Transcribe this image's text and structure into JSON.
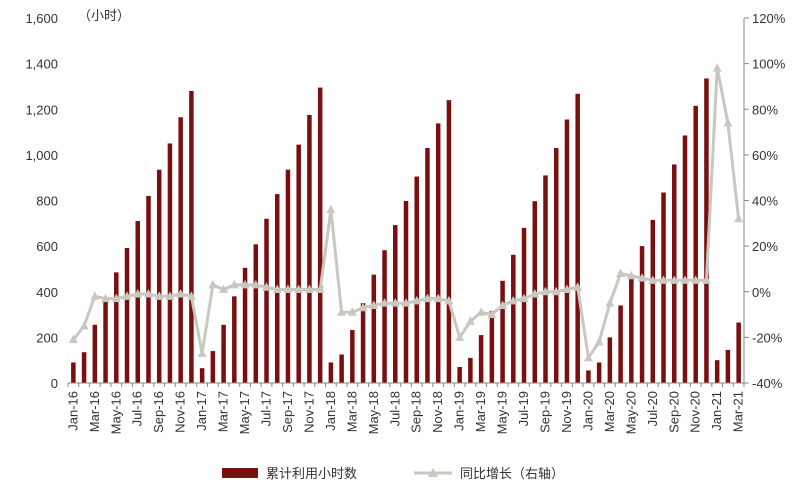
{
  "chart_data": {
    "type": "bar",
    "unit_label": "（小时）",
    "categories": [
      "Jan-16",
      "Feb-16",
      "Mar-16",
      "Apr-16",
      "May-16",
      "Jun-16",
      "Jul-16",
      "Aug-16",
      "Sep-16",
      "Oct-16",
      "Nov-16",
      "Dec-16",
      "Jan-17",
      "Feb-17",
      "Mar-17",
      "Apr-17",
      "May-17",
      "Jun-17",
      "Jul-17",
      "Aug-17",
      "Sep-17",
      "Oct-17",
      "Nov-17",
      "Dec-17",
      "Jan-18",
      "Feb-18",
      "Mar-18",
      "Apr-18",
      "May-18",
      "Jun-18",
      "Jul-18",
      "Aug-18",
      "Sep-18",
      "Oct-18",
      "Nov-18",
      "Dec-18",
      "Jan-19",
      "Feb-19",
      "Mar-19",
      "Apr-19",
      "May-19",
      "Jun-19",
      "Jul-19",
      "Aug-19",
      "Sep-19",
      "Oct-19",
      "Nov-19",
      "Dec-19",
      "Jan-20",
      "Feb-20",
      "Mar-20",
      "Apr-20",
      "May-20",
      "Jun-20",
      "Jul-20",
      "Aug-20",
      "Sep-20",
      "Oct-20",
      "Nov-20",
      "Dec-20",
      "Jan-21",
      "Feb-21",
      "Mar-21"
    ],
    "tick_labels": [
      "Jan-16",
      "Mar-16",
      "May-16",
      "Jul-16",
      "Sep-16",
      "Nov-16",
      "Jan-17",
      "Mar-17",
      "May-17",
      "Jul-17",
      "Sep-17",
      "Nov-17",
      "Jan-18",
      "Mar-18",
      "May-18",
      "Jul-18",
      "Sep-18",
      "Nov-18",
      "Jan-19",
      "Mar-19",
      "May-19",
      "Jul-19",
      "Sep-19",
      "Nov-19",
      "Jan-20",
      "Mar-20",
      "May-20",
      "Jul-20",
      "Sep-20",
      "Nov-20",
      "Jan-21",
      "Mar-21"
    ],
    "series": [
      {
        "name": "累计利用小时数",
        "kind": "bar",
        "axis": "left",
        "color": "#7a0f0f",
        "values": [
          90,
          135,
          255,
          360,
          485,
          592,
          710,
          820,
          935,
          1050,
          1165,
          1280,
          65,
          140,
          255,
          380,
          505,
          608,
          720,
          828,
          935,
          1045,
          1175,
          1295,
          90,
          125,
          232,
          350,
          475,
          582,
          692,
          798,
          905,
          1030,
          1138,
          1240,
          70,
          110,
          210,
          315,
          448,
          562,
          680,
          797,
          910,
          1030,
          1155,
          1268,
          55,
          90,
          200,
          340,
          462,
          600,
          715,
          835,
          958,
          1085,
          1215,
          1335,
          100,
          145,
          265
        ]
      },
      {
        "name": "同比增长（右轴）",
        "kind": "line",
        "axis": "right",
        "color": "#c8c8c0",
        "values": [
          -21,
          -15,
          -2,
          -3,
          -3,
          -2,
          -1,
          -1,
          -2,
          -2,
          -1,
          -2,
          -27,
          3,
          1,
          3,
          3,
          3,
          2,
          1,
          1,
          1,
          1,
          1,
          36,
          -9,
          -9,
          -7,
          -6,
          -5,
          -5,
          -5,
          -4,
          -3,
          -3,
          -4,
          -20,
          -13,
          -9,
          -10,
          -6,
          -4,
          -3,
          -1,
          0,
          0,
          1,
          2,
          -29,
          -22,
          -5,
          8,
          7,
          6,
          5,
          5,
          5,
          5,
          5,
          5,
          98,
          74,
          32
        ]
      }
    ],
    "y_left": {
      "min": 0,
      "max": 1600,
      "ticks": [
        0,
        200,
        400,
        600,
        800,
        1000,
        1200,
        1400,
        1600
      ],
      "tick_labels": [
        "0",
        "200",
        "400",
        "600",
        "800",
        "1,000",
        "1,200",
        "1,400",
        "1,600"
      ]
    },
    "y_right": {
      "min": -40,
      "max": 120,
      "ticks": [
        -40,
        -20,
        0,
        20,
        40,
        60,
        80,
        100,
        120
      ],
      "tick_labels": [
        "-40%",
        "-20%",
        "0%",
        "20%",
        "40%",
        "60%",
        "80%",
        "100%",
        "120%"
      ]
    },
    "grid": false,
    "legend_position": "bottom-center"
  }
}
